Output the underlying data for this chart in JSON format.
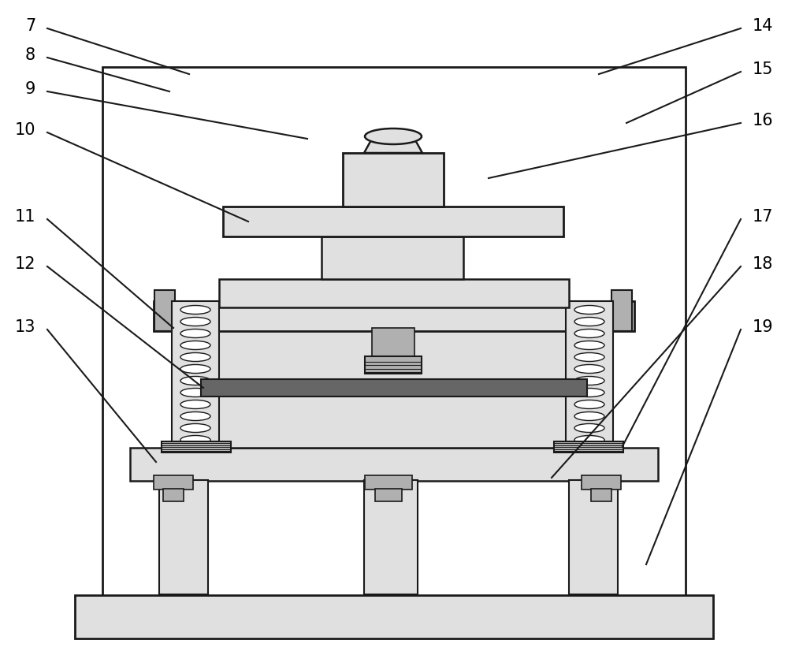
{
  "bg_color": "#ffffff",
  "line_color": "#1a1a1a",
  "light_gray": "#d0d0d0",
  "lighter_gray": "#e0e0e0",
  "medium_gray": "#b0b0b0",
  "dark_gray": "#888888",
  "cable_color": "#666666",
  "hatching_gray": "#c8c8c8",
  "label_fontsize": 15,
  "fig_width": 10.0,
  "fig_height": 8.36
}
